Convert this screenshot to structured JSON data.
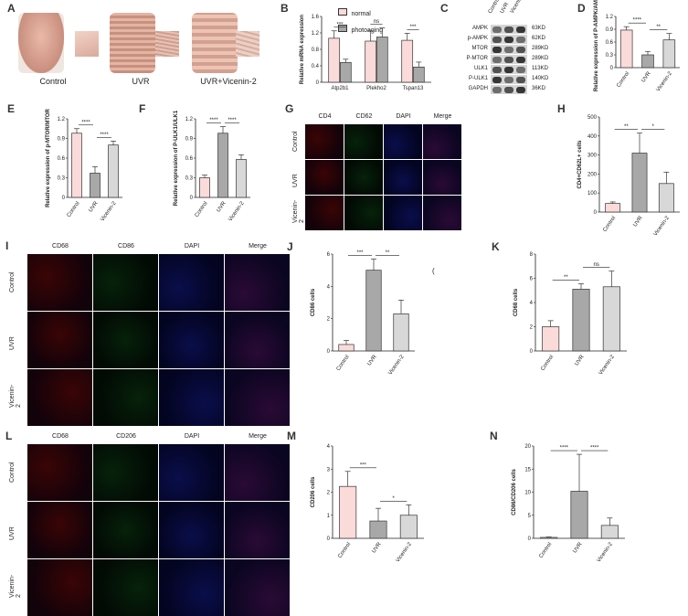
{
  "panels": {
    "A": {
      "label": "A",
      "groups": [
        "Control",
        "UVR",
        "UVR+Vicenin-2"
      ]
    },
    "B": {
      "label": "B",
      "legend": [
        "normal",
        "photoaging"
      ]
    },
    "C": {
      "label": "C",
      "columns": [
        "Control",
        "UVR",
        "Vicenin-2"
      ],
      "proteins": [
        "AMPK",
        "p-AMPK",
        "MTOR",
        "P-MTOR",
        "ULK1",
        "P-ULK1",
        "GAPDH"
      ],
      "sizes": [
        "63KD",
        "62KD",
        "289KD",
        "289KD",
        "113KD",
        "140KD",
        "36KD"
      ]
    },
    "D": {
      "label": "D"
    },
    "E": {
      "label": "E"
    },
    "F": {
      "label": "F"
    },
    "G": {
      "label": "G",
      "cols": [
        "CD4",
        "CD62",
        "DAPI",
        "Merge"
      ],
      "rows": [
        "Control",
        "UVR",
        "Vicenin-2"
      ]
    },
    "H": {
      "label": "H"
    },
    "I": {
      "label": "I",
      "cols": [
        "CD68",
        "CD86",
        "DAPI",
        "Merge"
      ],
      "rows": [
        "Control",
        "UVR",
        "Vicenin-2"
      ]
    },
    "J": {
      "label": "J"
    },
    "K": {
      "label": "K"
    },
    "L": {
      "label": "L",
      "cols": [
        "CD68",
        "CD206",
        "DAPI",
        "Merge"
      ],
      "rows": [
        "Control",
        "UVR",
        "Vicenin-2"
      ]
    },
    "M": {
      "label": "M"
    },
    "N": {
      "label": "N"
    }
  },
  "stray_mark": "(",
  "colors": {
    "pink": "#fbdada",
    "gray": "#a8a8a8",
    "light": "#d8d8d8"
  },
  "chart_data": [
    {
      "id": "B",
      "type": "bar",
      "ylabel": "Relative mRNA expression",
      "categories": [
        "Atp2b1",
        "Plekho2",
        "Tspan13"
      ],
      "series": [
        {
          "name": "normal",
          "values": [
            1.07,
            1.0,
            1.02
          ],
          "err": [
            0.18,
            0.25,
            0.17
          ]
        },
        {
          "name": "photoaging",
          "values": [
            0.48,
            1.1,
            0.37
          ],
          "err": [
            0.08,
            0.22,
            0.12
          ]
        }
      ],
      "ylim": [
        0,
        1.6
      ],
      "sig": [
        "***",
        "ns",
        "***"
      ]
    },
    {
      "id": "D",
      "type": "bar",
      "ylabel": "Relative expression of P-AMPK/AMPK",
      "categories": [
        "Control",
        "UVR",
        "Vicenin-2"
      ],
      "values": [
        0.88,
        0.3,
        0.65
      ],
      "err": [
        0.08,
        0.08,
        0.15
      ],
      "ylim": [
        0,
        1.2
      ],
      "sig": [
        "****",
        "**"
      ]
    },
    {
      "id": "E",
      "type": "bar",
      "ylabel": "Relative expression of p-MTOR/MTOR",
      "categories": [
        "Control",
        "UVR",
        "Vicenin-2"
      ],
      "values": [
        0.98,
        0.37,
        0.8
      ],
      "err": [
        0.07,
        0.1,
        0.06
      ],
      "ylim": [
        0,
        1.2
      ],
      "sig": [
        "****",
        "****"
      ]
    },
    {
      "id": "F",
      "type": "bar",
      "ylabel": "Relative expression of P-ULK1/ULK1",
      "categories": [
        "Control",
        "UVR",
        "Vicenin-2"
      ],
      "values": [
        0.3,
        0.98,
        0.58
      ],
      "err": [
        0.04,
        0.1,
        0.07
      ],
      "ylim": [
        0,
        1.2
      ],
      "sig": [
        "****",
        "****"
      ]
    },
    {
      "id": "H",
      "type": "bar",
      "ylabel": "CD4+CD62L+ cells",
      "categories": [
        "Control",
        "UVR",
        "Vicenin-2"
      ],
      "values": [
        45,
        310,
        150
      ],
      "err": [
        8,
        105,
        60
      ],
      "ylim": [
        0,
        500
      ],
      "yticks": [
        0,
        100,
        200,
        300,
        400,
        500
      ],
      "sig": [
        "**",
        "*"
      ]
    },
    {
      "id": "J",
      "type": "bar",
      "ylabel": "CD86 cells",
      "categories": [
        "Control",
        "UVR",
        "Vicenin-2"
      ],
      "values": [
        0.4,
        5.0,
        2.3
      ],
      "err": [
        0.25,
        0.7,
        0.85
      ],
      "ylim": [
        0,
        6
      ],
      "yticks": [
        0,
        2,
        4,
        6
      ],
      "sig": [
        "***",
        "**"
      ]
    },
    {
      "id": "K",
      "type": "bar",
      "ylabel": "CD68 cells",
      "categories": [
        "Control",
        "UVR",
        "Vicenin-2"
      ],
      "values": [
        2.0,
        5.1,
        5.3
      ],
      "err": [
        0.5,
        0.45,
        1.3
      ],
      "ylim": [
        0,
        8
      ],
      "yticks": [
        0,
        2,
        4,
        6,
        8
      ],
      "sig": [
        "**",
        "ns"
      ]
    },
    {
      "id": "M",
      "type": "bar",
      "ylabel": "CD206 cells",
      "categories": [
        "Control",
        "UVR",
        "Vicenin-2"
      ],
      "values": [
        2.25,
        0.75,
        1.0
      ],
      "err": [
        0.65,
        0.55,
        0.45
      ],
      "ylim": [
        0,
        4
      ],
      "yticks": [
        0,
        1,
        2,
        3,
        4
      ],
      "sig": [
        "***",
        "*"
      ]
    },
    {
      "id": "N",
      "type": "bar",
      "ylabel": "CD86/CD206 cells",
      "categories": [
        "Control",
        "UVR",
        "Vicenin-2"
      ],
      "values": [
        0.2,
        10.2,
        2.8
      ],
      "err": [
        0.1,
        8.0,
        1.6
      ],
      "ylim": [
        0,
        20
      ],
      "yticks": [
        0,
        5,
        10,
        15,
        20
      ],
      "sig": [
        "****",
        "****"
      ]
    }
  ]
}
